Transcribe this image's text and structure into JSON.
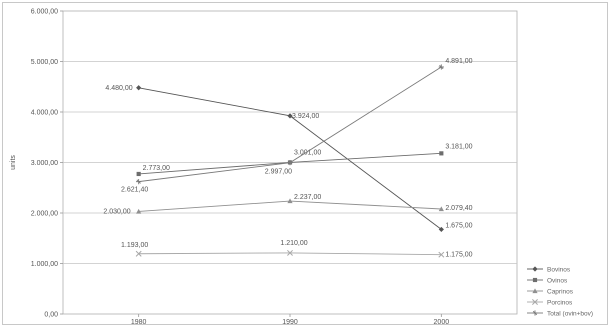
{
  "chart_data": {
    "type": "line",
    "title": "",
    "xlabel": "",
    "ylabel": "units",
    "ylim": [
      0,
      6000
    ],
    "yticks": [
      "0,00",
      "1.000,00",
      "2.000,00",
      "3.000,00",
      "4.000,00",
      "5.000,00",
      "6.000,00"
    ],
    "categories": [
      "1980",
      "1990",
      "2000"
    ],
    "grid": true,
    "legend_position": "right-bottom",
    "series": [
      {
        "name": "Bovinos",
        "values": [
          4480,
          3924,
          1675
        ],
        "labels": [
          "4.480,00",
          "3.924,00",
          "1.675,00"
        ],
        "marker": "diamond",
        "color": "#555555"
      },
      {
        "name": "Ovinos",
        "values": [
          2773,
          3001,
          3181
        ],
        "labels": [
          "2.773,00",
          "3.001,00",
          "3.181,00"
        ],
        "marker": "square",
        "color": "#6d6d6d"
      },
      {
        "name": "Caprinos",
        "values": [
          2030,
          2237,
          2079.4
        ],
        "labels": [
          "2.030,00",
          "2.237,00",
          "2.079,40"
        ],
        "marker": "triangle",
        "color": "#909090"
      },
      {
        "name": "Porcinos",
        "values": [
          1193,
          1210,
          1175
        ],
        "labels": [
          "1.193,00",
          "1.210,00",
          "1.175,00"
        ],
        "marker": "x",
        "color": "#a8a8a8"
      },
      {
        "name": "Total (ovin+bov)",
        "values": [
          2621.4,
          2997,
          4891
        ],
        "labels": [
          "2.621,40",
          "2.997,00",
          "4.891,00"
        ],
        "marker": "star",
        "color": "#7a7a7a"
      }
    ]
  }
}
